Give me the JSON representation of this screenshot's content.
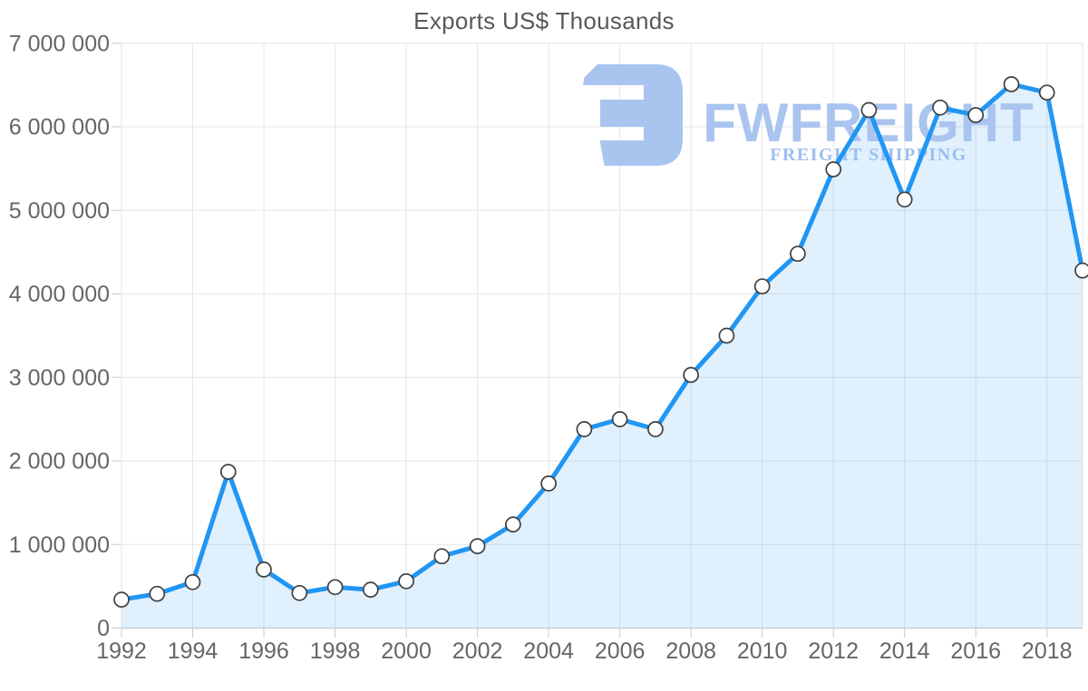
{
  "page": {
    "background": "#ffffff"
  },
  "chart_data": {
    "type": "area",
    "title": "Exports US$ Thousands",
    "xlabel": "",
    "ylabel": "",
    "x": [
      1992,
      1993,
      1994,
      1995,
      1996,
      1997,
      1998,
      1999,
      2000,
      2001,
      2002,
      2003,
      2004,
      2005,
      2006,
      2007,
      2008,
      2009,
      2010,
      2011,
      2012,
      2013,
      2014,
      2015,
      2016,
      2017,
      2018,
      2019
    ],
    "series": [
      {
        "name": "Exports US$ Thousands",
        "values": [
          340000,
          410000,
          550000,
          1870000,
          700000,
          420000,
          490000,
          460000,
          560000,
          860000,
          980000,
          1240000,
          1730000,
          2380000,
          2500000,
          2380000,
          3030000,
          3500000,
          4090000,
          4480000,
          5490000,
          6200000,
          5130000,
          6230000,
          6140000,
          6510000,
          6410000,
          4280000
        ]
      }
    ],
    "ylim": [
      0,
      7000000
    ],
    "y_tick_step": 1000000,
    "y_tick_labels": [
      "0",
      "1 000 000",
      "2 000 000",
      "3 000 000",
      "4 000 000",
      "5 000 000",
      "6 000 000",
      "7 000 000"
    ],
    "x_tick_labels": [
      "1992",
      "1994",
      "1996",
      "1998",
      "2000",
      "2002",
      "2004",
      "2006",
      "2008",
      "2010",
      "2012",
      "2014",
      "2016",
      "2018"
    ],
    "x_tick_years": [
      1992,
      1994,
      1996,
      1998,
      2000,
      2002,
      2004,
      2006,
      2008,
      2010,
      2012,
      2014,
      2016,
      2018
    ],
    "grid": true,
    "legend": false,
    "colors": {
      "line": "#2196f3",
      "area_fill": "rgba(33,150,243,0.14)",
      "marker_fill": "#ffffff",
      "marker_stroke": "#3f3f3f",
      "gridline": "#e6e6e6",
      "axis_line": "#c9c9c9",
      "tick_label": "#666666",
      "title": "#595959"
    }
  },
  "watermark": {
    "logo_icon": "fwfreight-logo",
    "wordmark": "FWFREIGHT",
    "tagline": "FREIGHT SHIPPING",
    "logo_color": "#a9c4ef",
    "wordmark_color": "#a9c4ef",
    "tagline_color": "#9cbff2"
  }
}
